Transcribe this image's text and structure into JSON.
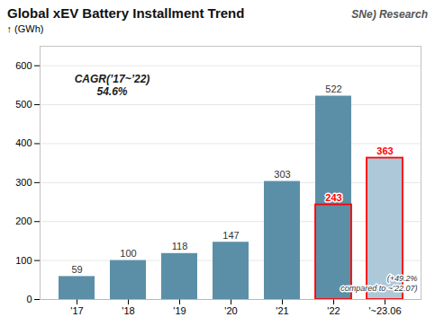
{
  "chart_data": {
    "type": "bar",
    "title": "Global xEV Battery Installment Trend",
    "logo": "SNe) Research",
    "ylabel": "(GWh)",
    "categories": [
      "'17",
      "'18",
      "'19",
      "'20",
      "'21",
      "'22",
      "'~23.06"
    ],
    "values": [
      59,
      100,
      118,
      147,
      303,
      522,
      363
    ],
    "colors": [
      "#5b8fa8",
      "#5b8fa8",
      "#5b8fa8",
      "#5b8fa8",
      "#5b8fa8",
      "#5b8fa8",
      "#adc8d8"
    ],
    "highlights": [
      {
        "category": "'22",
        "value": 243,
        "color": "red",
        "line_style": "dashed"
      },
      {
        "category": "'~23.06",
        "value": 363,
        "color": "red",
        "line_style": "dashed"
      }
    ],
    "ylim": [
      0,
      650
    ],
    "yticks": [
      0,
      100,
      200,
      300,
      400,
      500,
      600
    ],
    "grid": true,
    "data_labels": true,
    "annotations": [
      "CAGR(’17~’22)\n54.6%",
      "(+49.2%\ncompared to ~’22.07)"
    ]
  }
}
